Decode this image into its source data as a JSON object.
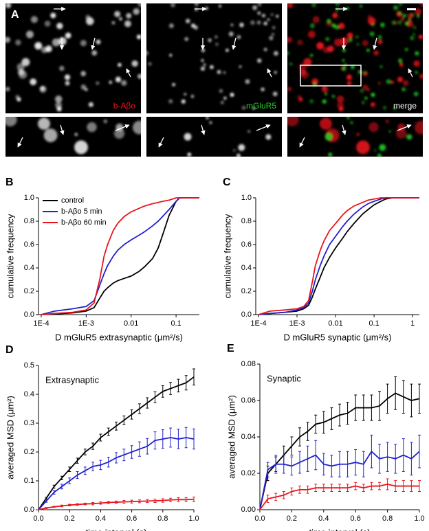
{
  "panel_a": {
    "label": "A",
    "channels": [
      "b-Aβo",
      "mGluR5",
      "merge"
    ]
  },
  "chart_data": [
    {
      "type": "line",
      "label": "B",
      "xlabel": "D mGluR5 extrasynaptic (μm²/s)",
      "ylabel": "cumulative frequency",
      "xscale": "log",
      "xlim": [
        8.7e-05,
        0.33
      ],
      "ylim": [
        0,
        1
      ],
      "xticks": [
        {
          "value": 0.0001,
          "label": "1E-4"
        },
        {
          "value": 0.001,
          "label": "1E-3"
        },
        0.01,
        0.1
      ],
      "yticks": [
        {
          "value": 0,
          "label": "0.0"
        },
        0.2,
        0.4,
        0.6,
        0.8,
        {
          "value": 1,
          "label": "1.0"
        }
      ],
      "legend": "upper left",
      "x": [
        0.0001,
        0.0002,
        0.0005,
        0.001,
        0.0015,
        0.002,
        0.0025,
        0.003,
        0.004,
        0.005,
        0.007,
        0.01,
        0.015,
        0.02,
        0.03,
        0.04,
        0.05,
        0.07,
        0.1,
        0.12,
        0.15,
        0.2,
        0.33
      ],
      "series": [
        {
          "name": "control",
          "color": "#000000",
          "values": [
            0,
            0.005,
            0.015,
            0.03,
            0.06,
            0.14,
            0.2,
            0.23,
            0.27,
            0.29,
            0.31,
            0.33,
            0.37,
            0.41,
            0.48,
            0.57,
            0.68,
            0.85,
            0.97,
            1,
            1,
            1,
            1
          ]
        },
        {
          "name": "b-Aβo 5 min",
          "color": "#2020d0",
          "values": [
            0,
            0.03,
            0.05,
            0.07,
            0.12,
            0.25,
            0.35,
            0.42,
            0.5,
            0.55,
            0.6,
            0.64,
            0.68,
            0.71,
            0.76,
            0.8,
            0.84,
            0.9,
            0.97,
            1,
            1,
            1,
            1
          ]
        },
        {
          "name": "b-Aβo 60 min",
          "color": "#e8141c",
          "values": [
            0,
            0.01,
            0.02,
            0.04,
            0.1,
            0.3,
            0.5,
            0.6,
            0.72,
            0.78,
            0.84,
            0.88,
            0.91,
            0.93,
            0.95,
            0.96,
            0.97,
            0.98,
            1,
            1,
            1,
            1,
            1
          ]
        }
      ]
    },
    {
      "type": "line",
      "label": "C",
      "xlabel": "D mGluR5 synaptic (μm²/s)",
      "ylabel": "cumulative frequency",
      "xscale": "log",
      "xlim": [
        8.5e-05,
        1.5
      ],
      "ylim": [
        0,
        1
      ],
      "xticks": [
        {
          "value": 0.0001,
          "label": "1E-4"
        },
        {
          "value": 0.001,
          "label": "1E-3"
        },
        0.01,
        0.1,
        1
      ],
      "yticks": [
        {
          "value": 0,
          "label": "0.0"
        },
        0.2,
        0.4,
        0.6,
        0.8,
        {
          "value": 1,
          "label": "1.0"
        }
      ],
      "x": [
        0.0001,
        0.0002,
        0.0005,
        0.001,
        0.0015,
        0.002,
        0.0025,
        0.003,
        0.004,
        0.005,
        0.007,
        0.01,
        0.015,
        0.02,
        0.03,
        0.05,
        0.07,
        0.1,
        0.15,
        0.2,
        0.3,
        0.5,
        1,
        1.5
      ],
      "series": [
        {
          "color": "#000000",
          "values": [
            0,
            0.01,
            0.02,
            0.03,
            0.05,
            0.08,
            0.15,
            0.22,
            0.32,
            0.4,
            0.49,
            0.57,
            0.65,
            0.71,
            0.78,
            0.86,
            0.9,
            0.94,
            0.97,
            0.99,
            1,
            1,
            1,
            1
          ]
        },
        {
          "color": "#2020d0",
          "values": [
            0,
            0.01,
            0.02,
            0.04,
            0.06,
            0.1,
            0.2,
            0.3,
            0.42,
            0.5,
            0.6,
            0.67,
            0.75,
            0.8,
            0.86,
            0.92,
            0.95,
            0.97,
            0.99,
            1,
            1,
            1,
            1,
            1
          ]
        },
        {
          "color": "#e8141c",
          "values": [
            0,
            0.03,
            0.04,
            0.05,
            0.07,
            0.12,
            0.28,
            0.42,
            0.55,
            0.63,
            0.72,
            0.78,
            0.85,
            0.89,
            0.93,
            0.96,
            0.98,
            0.99,
            1,
            1,
            1,
            1,
            1,
            1
          ]
        }
      ]
    },
    {
      "type": "line",
      "label": "D",
      "annotation": "Extrasynaptic",
      "xlabel": "time interval (s)",
      "ylabel": "averaged MSD (μm²)",
      "xlim": [
        0,
        1
      ],
      "ylim": [
        0,
        0.5
      ],
      "xticks": [
        {
          "value": 0,
          "label": "0.0"
        },
        0.2,
        0.4,
        0.6,
        0.8,
        {
          "value": 1,
          "label": "1.0"
        }
      ],
      "yticks": [
        {
          "value": 0,
          "label": "0.0"
        },
        0.1,
        0.2,
        0.3,
        0.4,
        0.5
      ],
      "x": [
        0,
        0.05,
        0.1,
        0.15,
        0.2,
        0.25,
        0.3,
        0.35,
        0.4,
        0.45,
        0.5,
        0.55,
        0.6,
        0.65,
        0.7,
        0.75,
        0.8,
        0.85,
        0.9,
        0.95,
        1
      ],
      "series": [
        {
          "color": "#000000",
          "values": [
            0,
            0.04,
            0.08,
            0.11,
            0.14,
            0.17,
            0.2,
            0.22,
            0.25,
            0.27,
            0.29,
            0.31,
            0.33,
            0.35,
            0.37,
            0.39,
            0.41,
            0.42,
            0.43,
            0.44,
            0.46
          ],
          "errors": [
            0,
            0.003,
            0.005,
            0.006,
            0.008,
            0.009,
            0.01,
            0.011,
            0.012,
            0.013,
            0.014,
            0.015,
            0.016,
            0.017,
            0.018,
            0.019,
            0.02,
            0.021,
            0.022,
            0.025,
            0.028
          ]
        },
        {
          "color": "#2020d0",
          "values": [
            0,
            0.03,
            0.06,
            0.08,
            0.1,
            0.12,
            0.135,
            0.15,
            0.155,
            0.165,
            0.18,
            0.19,
            0.2,
            0.21,
            0.22,
            0.24,
            0.245,
            0.25,
            0.245,
            0.25,
            0.245
          ],
          "errors": [
            0,
            0.004,
            0.006,
            0.008,
            0.01,
            0.012,
            0.013,
            0.015,
            0.016,
            0.017,
            0.018,
            0.02,
            0.022,
            0.025,
            0.027,
            0.03,
            0.032,
            0.033,
            0.034,
            0.035,
            0.035
          ]
        },
        {
          "color": "#e8141c",
          "values": [
            0,
            0.006,
            0.01,
            0.013,
            0.016,
            0.018,
            0.02,
            0.021,
            0.023,
            0.025,
            0.026,
            0.027,
            0.028,
            0.029,
            0.03,
            0.031,
            0.032,
            0.034,
            0.035,
            0.035,
            0.036
          ],
          "errors": [
            0,
            0.002,
            0.002,
            0.003,
            0.003,
            0.003,
            0.003,
            0.004,
            0.004,
            0.004,
            0.004,
            0.005,
            0.005,
            0.005,
            0.005,
            0.006,
            0.006,
            0.006,
            0.007,
            0.007,
            0.008
          ]
        }
      ]
    },
    {
      "type": "line",
      "label": "E",
      "annotation": "Synaptic",
      "xlabel": "time interval (s)",
      "ylabel": "averaged MSD (μm²)",
      "xlim": [
        0,
        1
      ],
      "ylim": [
        0,
        0.08
      ],
      "xticks": [
        {
          "value": 0,
          "label": "0.0"
        },
        0.2,
        0.4,
        0.6,
        0.8,
        {
          "value": 1,
          "label": "1.0"
        }
      ],
      "yticks": [
        {
          "value": 0,
          "label": "0.00"
        },
        0.02,
        0.04,
        0.06,
        0.08
      ],
      "x": [
        0,
        0.05,
        0.1,
        0.15,
        0.2,
        0.25,
        0.3,
        0.35,
        0.4,
        0.45,
        0.5,
        0.55,
        0.6,
        0.65,
        0.7,
        0.75,
        0.8,
        0.85,
        0.9,
        0.95,
        1
      ],
      "series": [
        {
          "color": "#000000",
          "values": [
            0,
            0.02,
            0.025,
            0.03,
            0.035,
            0.04,
            0.043,
            0.047,
            0.048,
            0.05,
            0.052,
            0.053,
            0.056,
            0.056,
            0.056,
            0.057,
            0.061,
            0.064,
            0.062,
            0.06,
            0.061
          ],
          "errors": [
            0,
            0.004,
            0.004,
            0.005,
            0.005,
            0.005,
            0.005,
            0.005,
            0.006,
            0.006,
            0.006,
            0.006,
            0.007,
            0.007,
            0.007,
            0.008,
            0.008,
            0.009,
            0.009,
            0.009,
            0.008
          ]
        },
        {
          "color": "#2020d0",
          "values": [
            0,
            0.022,
            0.025,
            0.025,
            0.024,
            0.026,
            0.028,
            0.03,
            0.025,
            0.024,
            0.025,
            0.025,
            0.026,
            0.025,
            0.032,
            0.028,
            0.029,
            0.028,
            0.03,
            0.028,
            0.032
          ],
          "errors": [
            0,
            0.004,
            0.005,
            0.005,
            0.005,
            0.006,
            0.007,
            0.008,
            0.006,
            0.006,
            0.007,
            0.007,
            0.007,
            0.007,
            0.009,
            0.008,
            0.008,
            0.008,
            0.009,
            0.009,
            0.009
          ]
        },
        {
          "color": "#e8141c",
          "values": [
            0,
            0.006,
            0.007,
            0.008,
            0.01,
            0.011,
            0.011,
            0.012,
            0.012,
            0.012,
            0.012,
            0.012,
            0.013,
            0.012,
            0.013,
            0.013,
            0.014,
            0.013,
            0.013,
            0.013,
            0.013
          ],
          "errors": [
            0,
            0.002,
            0.002,
            0.002,
            0.002,
            0.002,
            0.002,
            0.002,
            0.002,
            0.002,
            0.002,
            0.002,
            0.002,
            0.002,
            0.002,
            0.002,
            0.003,
            0.003,
            0.003,
            0.003,
            0.003
          ]
        }
      ]
    }
  ]
}
